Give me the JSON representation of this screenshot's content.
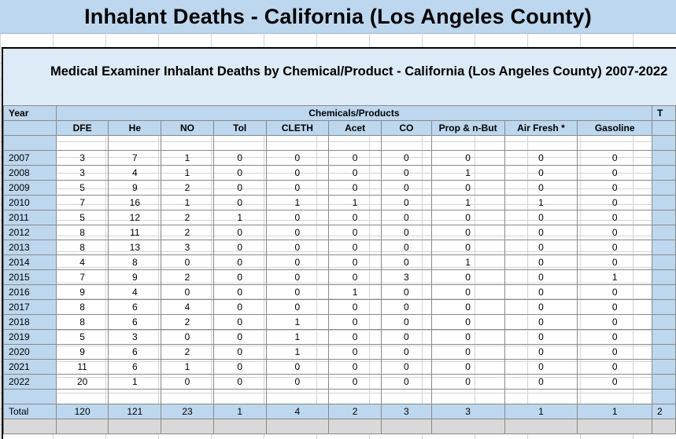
{
  "title": "Inhalant Deaths - California (Los Angeles County)",
  "subtitle": "Medical Examiner Inhalant Deaths by Chemical/Product - California (Los Angeles County) 2007-2022",
  "table": {
    "year_header": "Year",
    "group_header": "Chemicals/Products",
    "trailing_header_fragment": "T",
    "columns": [
      "DFE",
      "He",
      "NO",
      "Tol",
      "CLETH",
      "Acet",
      "CO",
      "Prop & n-But",
      "Air Fresh *",
      "Gasoline"
    ],
    "rows": [
      {
        "year": "2007",
        "values": [
          "3",
          "7",
          "1",
          "0",
          "0",
          "0",
          "0",
          "0",
          "0",
          "0"
        ]
      },
      {
        "year": "2008",
        "values": [
          "3",
          "4",
          "1",
          "0",
          "0",
          "0",
          "0",
          "1",
          "0",
          "0"
        ]
      },
      {
        "year": "2009",
        "values": [
          "5",
          "9",
          "2",
          "0",
          "0",
          "0",
          "0",
          "0",
          "0",
          "0"
        ]
      },
      {
        "year": "2010",
        "values": [
          "7",
          "16",
          "1",
          "0",
          "1",
          "1",
          "0",
          "1",
          "1",
          "0"
        ]
      },
      {
        "year": "2011",
        "values": [
          "5",
          "12",
          "2",
          "1",
          "0",
          "0",
          "0",
          "0",
          "0",
          "0"
        ]
      },
      {
        "year": "2012",
        "values": [
          "8",
          "11",
          "2",
          "0",
          "0",
          "0",
          "0",
          "0",
          "0",
          "0"
        ]
      },
      {
        "year": "2013",
        "values": [
          "8",
          "13",
          "3",
          "0",
          "0",
          "0",
          "0",
          "0",
          "0",
          "0"
        ]
      },
      {
        "year": "2014",
        "values": [
          "4",
          "8",
          "0",
          "0",
          "0",
          "0",
          "0",
          "1",
          "0",
          "0"
        ]
      },
      {
        "year": "2015",
        "values": [
          "7",
          "9",
          "2",
          "0",
          "0",
          "0",
          "3",
          "0",
          "0",
          "1"
        ]
      },
      {
        "year": "2016",
        "values": [
          "9",
          "4",
          "0",
          "0",
          "0",
          "1",
          "0",
          "0",
          "0",
          "0"
        ]
      },
      {
        "year": "2017",
        "values": [
          "8",
          "6",
          "4",
          "0",
          "0",
          "0",
          "0",
          "0",
          "0",
          "0"
        ]
      },
      {
        "year": "2018",
        "values": [
          "8",
          "6",
          "2",
          "0",
          "1",
          "0",
          "0",
          "0",
          "0",
          "0"
        ]
      },
      {
        "year": "2019",
        "values": [
          "5",
          "3",
          "0",
          "0",
          "1",
          "0",
          "0",
          "0",
          "0",
          "0"
        ]
      },
      {
        "year": "2020",
        "values": [
          "9",
          "6",
          "2",
          "0",
          "1",
          "0",
          "0",
          "0",
          "0",
          "0"
        ]
      },
      {
        "year": "2021",
        "values": [
          "11",
          "6",
          "1",
          "0",
          "0",
          "0",
          "0",
          "0",
          "0",
          "0"
        ]
      },
      {
        "year": "2022",
        "values": [
          "20",
          "1",
          "0",
          "0",
          "0",
          "0",
          "0",
          "0",
          "0",
          "0"
        ]
      }
    ],
    "total_label": "Total",
    "totals": [
      "120",
      "121",
      "23",
      "1",
      "4",
      "2",
      "3",
      "3",
      "1",
      "1"
    ],
    "total_trailing_fragment": "2"
  },
  "colors": {
    "header_fill": "#bdd7ee",
    "subtitle_fill": "#ddebf7",
    "footer_fill": "#d9d9d9",
    "grid_line": "#8a8a8a"
  }
}
